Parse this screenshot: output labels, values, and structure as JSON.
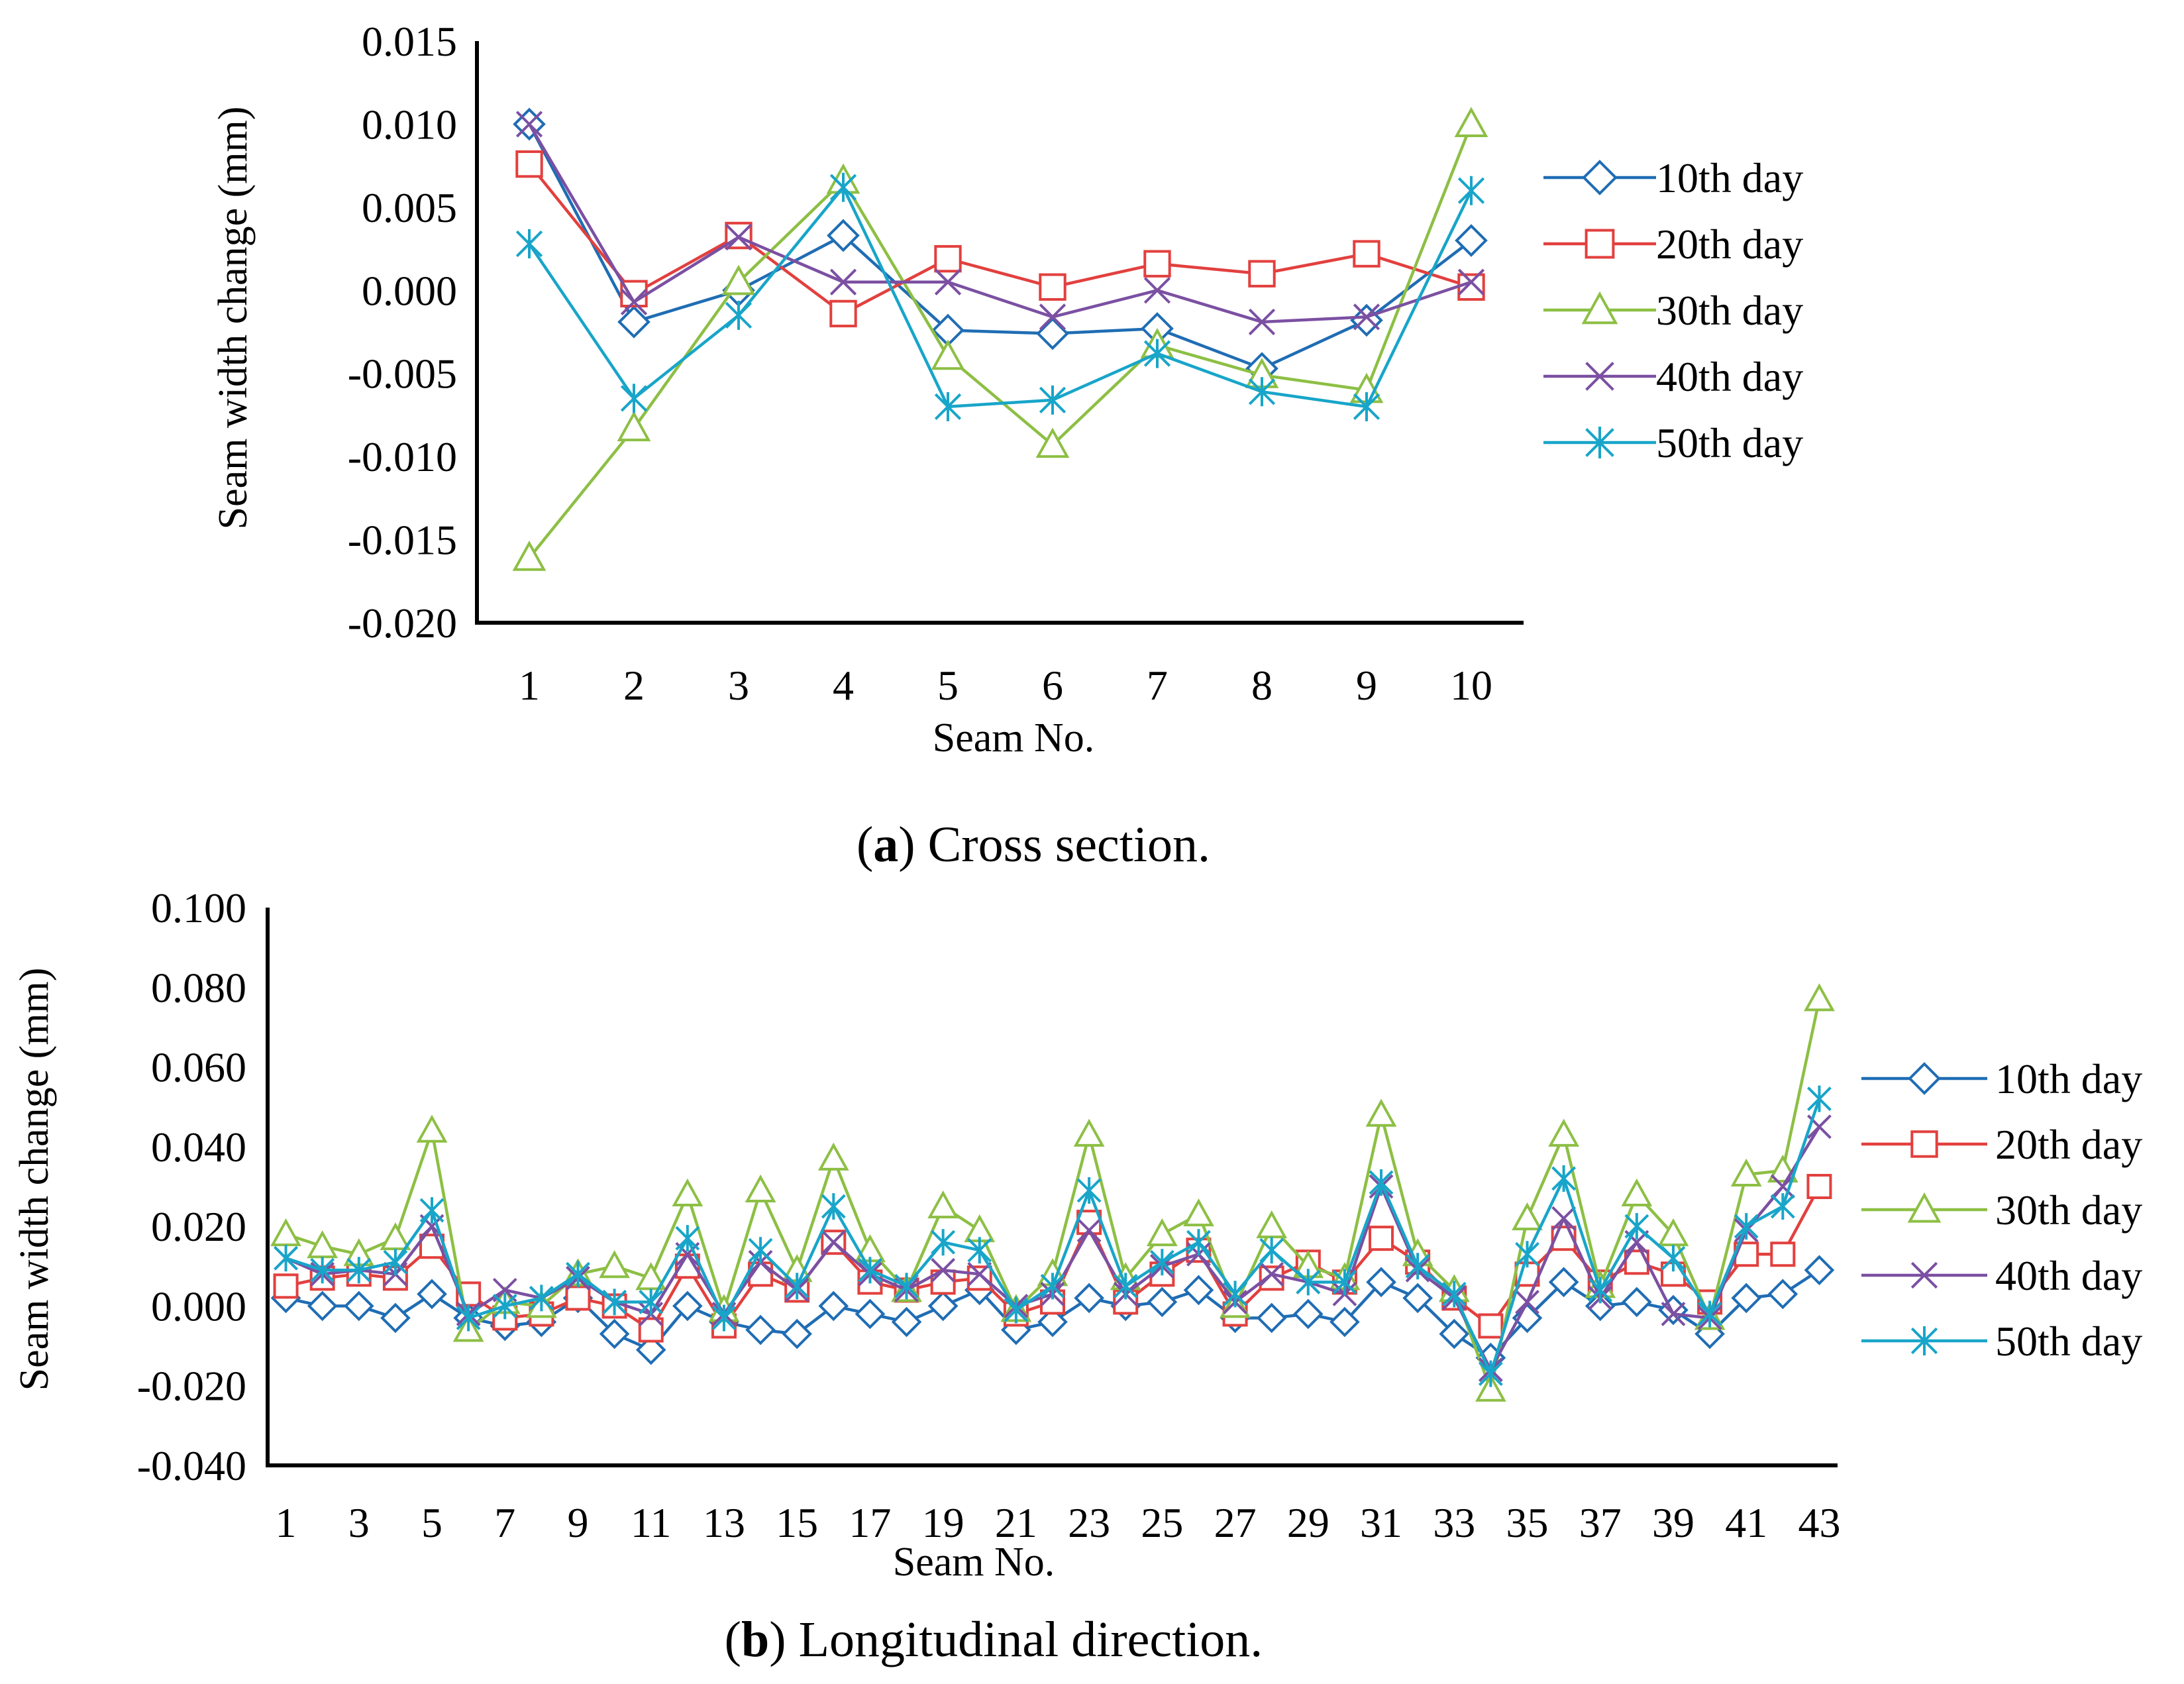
{
  "colors": {
    "10th day": "#1f6db4",
    "20th day": "#e2403e",
    "30th day": "#8dbf44",
    "40th day": "#7b50a2",
    "50th day": "#18a5c9"
  },
  "markers": {
    "10th day": "diamond",
    "20th day": "square",
    "30th day": "triangle",
    "40th day": "x",
    "50th day": "star"
  },
  "chart_data": [
    {
      "type": "line",
      "ylabel": "Seam width change (mm)",
      "xlabel": "Seam No.",
      "caption_letter": "a",
      "caption_text": ") Cross section.",
      "caption_open": "(",
      "ylim": [
        -0.02,
        0.015
      ],
      "ytick_step": 0.005,
      "yticks": [
        "0.015",
        "0.010",
        "0.005",
        "0.000",
        "-0.005",
        "-0.010",
        "-0.015",
        "-0.020"
      ],
      "x": [
        1,
        2,
        3,
        4,
        5,
        6,
        7,
        8,
        9,
        10
      ],
      "xticks": [
        "1",
        "2",
        "3",
        "4",
        "5",
        "6",
        "7",
        "8",
        "9",
        "10"
      ],
      "legend": [
        "10th day",
        "20th day",
        "30th day",
        "40th day",
        "50th day"
      ],
      "series": [
        {
          "name": "10th day",
          "values": [
            0.01,
            -0.0019,
            0.0,
            0.0033,
            -0.0024,
            -0.0026,
            -0.0023,
            -0.0047,
            -0.0018,
            0.003
          ]
        },
        {
          "name": "20th day",
          "values": [
            0.0076,
            -0.0002,
            0.0033,
            -0.0014,
            0.0019,
            0.0002,
            0.0016,
            0.001,
            0.0022,
            0.0002
          ]
        },
        {
          "name": "30th day",
          "values": [
            -0.0161,
            -0.0083,
            0.0005,
            0.0066,
            -0.004,
            -0.0093,
            -0.0033,
            -0.0051,
            -0.006,
            0.01
          ]
        },
        {
          "name": "40th day",
          "values": [
            0.01,
            -0.0007,
            0.0032,
            0.0005,
            0.0005,
            -0.0016,
            0.0,
            -0.0019,
            -0.0016,
            0.0005
          ]
        },
        {
          "name": "50th day",
          "values": [
            0.0028,
            -0.0065,
            -0.0015,
            0.0062,
            -0.007,
            -0.0066,
            -0.0038,
            -0.0061,
            -0.007,
            0.006
          ]
        }
      ]
    },
    {
      "type": "line",
      "ylabel": "Seam width change (mm)",
      "xlabel": "Seam No.",
      "caption_letter": "b",
      "caption_text": ") Longitudinal direction.",
      "caption_open": "(",
      "ylim": [
        -0.04,
        0.1
      ],
      "ytick_step": 0.02,
      "yticks": [
        "0.100",
        "0.080",
        "0.060",
        "0.040",
        "0.020",
        "0.000",
        "-0.020",
        "-0.040"
      ],
      "x": [
        1,
        2,
        3,
        4,
        5,
        6,
        7,
        8,
        9,
        10,
        11,
        12,
        13,
        14,
        15,
        16,
        17,
        18,
        19,
        20,
        21,
        22,
        23,
        24,
        25,
        26,
        27,
        28,
        29,
        30,
        31,
        32,
        33,
        34,
        35,
        36,
        37,
        38,
        39,
        40,
        41,
        42,
        43
      ],
      "xticks": [
        "1",
        "3",
        "5",
        "7",
        "9",
        "11",
        "13",
        "15",
        "17",
        "19",
        "21",
        "23",
        "25",
        "27",
        "29",
        "31",
        "33",
        "35",
        "37",
        "39",
        "41",
        "43"
      ],
      "legend": [
        "10th day",
        "20th day",
        "30th day",
        "40th day",
        "50th day"
      ],
      "series": [
        {
          "name": "10th day",
          "values": [
            0.002,
            0.0,
            0.0,
            -0.003,
            0.003,
            -0.003,
            -0.005,
            -0.004,
            0.002,
            -0.007,
            -0.011,
            0.0,
            -0.004,
            -0.006,
            -0.007,
            0.0,
            -0.002,
            -0.004,
            0.0,
            0.004,
            -0.006,
            -0.004,
            0.002,
            0.0,
            0.001,
            0.004,
            -0.003,
            -0.003,
            -0.002,
            -0.004,
            0.006,
            0.002,
            -0.007,
            -0.013,
            -0.003,
            0.006,
            0.0,
            0.001,
            -0.001,
            -0.007,
            0.002,
            0.003,
            0.009
          ]
        },
        {
          "name": "20th day",
          "values": [
            0.005,
            0.007,
            0.008,
            0.007,
            0.015,
            0.003,
            -0.003,
            -0.002,
            0.002,
            0.0,
            -0.006,
            0.01,
            -0.005,
            0.008,
            0.004,
            0.016,
            0.006,
            0.004,
            0.006,
            0.007,
            -0.002,
            0.001,
            0.021,
            0.001,
            0.008,
            0.014,
            -0.002,
            0.007,
            0.011,
            0.006,
            0.017,
            0.011,
            0.002,
            -0.005,
            0.008,
            0.017,
            0.006,
            0.011,
            0.008,
            0.001,
            0.013,
            0.013,
            0.03
          ]
        },
        {
          "name": "30th day",
          "values": [
            0.018,
            0.015,
            0.013,
            0.017,
            0.044,
            -0.006,
            0.001,
            0.0,
            0.008,
            0.01,
            0.007,
            0.028,
            -0.001,
            0.029,
            0.009,
            0.037,
            0.014,
            0.004,
            0.025,
            0.019,
            -0.001,
            0.008,
            0.043,
            0.007,
            0.018,
            0.023,
            0.0,
            0.02,
            0.01,
            0.007,
            0.048,
            0.013,
            0.004,
            -0.021,
            0.022,
            0.043,
            0.005,
            0.028,
            0.018,
            -0.003,
            0.033,
            0.034,
            0.077
          ]
        },
        {
          "name": "40th day",
          "values": [
            0.012,
            0.008,
            0.009,
            0.008,
            0.02,
            -0.002,
            0.004,
            0.002,
            0.007,
            0.001,
            -0.002,
            0.013,
            -0.002,
            0.011,
            0.004,
            0.016,
            0.008,
            0.004,
            0.009,
            0.008,
            0.0,
            0.003,
            0.019,
            0.003,
            0.01,
            0.013,
            0.001,
            0.008,
            0.006,
            0.003,
            0.03,
            0.009,
            0.002,
            -0.016,
            0.001,
            0.022,
            0.002,
            0.016,
            -0.002,
            -0.003,
            0.019,
            0.03,
            0.045
          ]
        },
        {
          "name": "50th day",
          "values": [
            0.012,
            0.009,
            0.009,
            0.011,
            0.024,
            -0.003,
            0.0,
            0.002,
            0.008,
            0.001,
            0.001,
            0.017,
            -0.003,
            0.014,
            0.005,
            0.025,
            0.009,
            0.005,
            0.016,
            0.014,
            -0.001,
            0.005,
            0.029,
            0.005,
            0.011,
            0.016,
            0.003,
            0.014,
            0.006,
            0.006,
            0.031,
            0.01,
            0.003,
            -0.017,
            0.013,
            0.032,
            0.004,
            0.02,
            0.012,
            -0.002,
            0.02,
            0.025,
            0.052
          ]
        }
      ]
    }
  ]
}
